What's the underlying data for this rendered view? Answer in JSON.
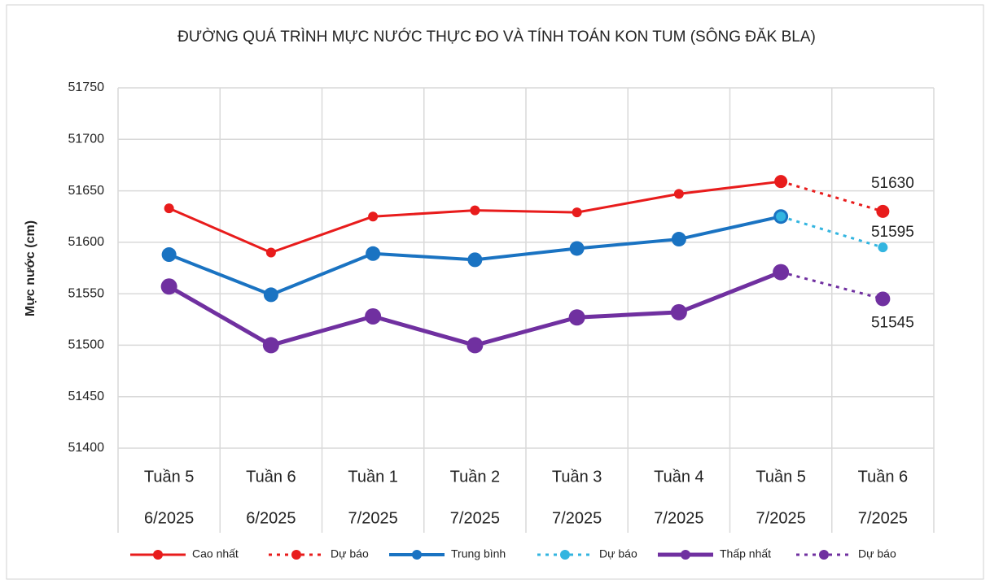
{
  "chart_data": {
    "type": "line",
    "title": "ĐƯỜNG QUÁ TRÌNH MỰC NƯỚC THỰC ĐO VÀ TÍNH TOÁN KON TUM (SÔNG ĐĂK BLA)",
    "y_label": "Mực nước (cm)",
    "categories": [
      [
        "Tuần 5",
        "6/2025"
      ],
      [
        "Tuần 6",
        "6/2025"
      ],
      [
        "Tuần 1",
        "7/2025"
      ],
      [
        "Tuần 2",
        "7/2025"
      ],
      [
        "Tuần 3",
        "7/2025"
      ],
      [
        "Tuần 4",
        "7/2025"
      ],
      [
        "Tuần 5",
        "7/2025"
      ],
      [
        "Tuần 6",
        "7/2025"
      ]
    ],
    "ylim": [
      51400,
      51750
    ],
    "yticks": [
      51400,
      51450,
      51500,
      51550,
      51600,
      51650,
      51700,
      51750
    ],
    "grid": true,
    "legend": "bottom",
    "series": [
      {
        "name": "Cao nhất",
        "color": "#e81c1c",
        "width": 3,
        "marker": 6,
        "dashed": false,
        "values": [
          51633,
          51590,
          51625,
          51631,
          51629,
          51647,
          51659,
          null
        ]
      },
      {
        "name": "Dự báo",
        "color": "#e81c1c",
        "width": 3,
        "marker": 8,
        "dashed": true,
        "show_last_label": true,
        "values": [
          null,
          null,
          null,
          null,
          null,
          null,
          51659,
          51630
        ]
      },
      {
        "name": "Trung bình",
        "color": "#1a73c2",
        "width": 4,
        "marker": 9,
        "dashed": false,
        "values": [
          51588,
          51549,
          51589,
          51583,
          51594,
          51603,
          51625,
          null
        ]
      },
      {
        "name": "Dự báo",
        "color": "#33b5e0",
        "width": 3,
        "marker": 6,
        "dashed": true,
        "show_last_label": true,
        "values": [
          null,
          null,
          null,
          null,
          null,
          null,
          51625,
          51595
        ]
      },
      {
        "name": "Thấp nhất",
        "color": "#7030a0",
        "width": 5,
        "marker": 10,
        "dashed": false,
        "values": [
          51557,
          51500,
          51528,
          51500,
          51527,
          51532,
          51571,
          null
        ]
      },
      {
        "name": "Dự báo",
        "color": "#7030a0",
        "width": 3,
        "marker": 9,
        "dashed": true,
        "show_last_label": true,
        "values": [
          null,
          null,
          null,
          null,
          null,
          null,
          51571,
          51545
        ]
      }
    ]
  }
}
